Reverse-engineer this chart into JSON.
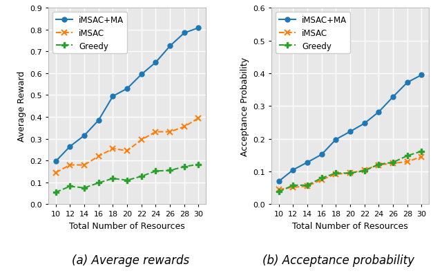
{
  "x": [
    10,
    12,
    14,
    16,
    18,
    20,
    22,
    24,
    26,
    28,
    30
  ],
  "reward_imsac_ma": [
    0.197,
    0.265,
    0.315,
    0.385,
    0.495,
    0.53,
    0.595,
    0.65,
    0.725,
    0.785,
    0.808
  ],
  "reward_imsac": [
    0.145,
    0.18,
    0.18,
    0.22,
    0.255,
    0.245,
    0.295,
    0.332,
    0.332,
    0.355,
    0.395
  ],
  "reward_greedy": [
    0.055,
    0.082,
    0.075,
    0.098,
    0.118,
    0.11,
    0.128,
    0.152,
    0.155,
    0.172,
    0.183
  ],
  "acc_imsac_ma": [
    0.07,
    0.105,
    0.128,
    0.152,
    0.198,
    0.222,
    0.247,
    0.282,
    0.328,
    0.372,
    0.395
  ],
  "acc_imsac": [
    0.045,
    0.052,
    0.055,
    0.075,
    0.092,
    0.095,
    0.105,
    0.12,
    0.125,
    0.13,
    0.145
  ],
  "acc_greedy": [
    0.038,
    0.058,
    0.058,
    0.08,
    0.095,
    0.095,
    0.102,
    0.122,
    0.128,
    0.148,
    0.162
  ],
  "color_blue": "#1f77b4",
  "color_orange": "#ff7f0e",
  "color_green": "#2ca02c",
  "xlabel": "Total Number of Resources",
  "ylabel_left": "Average Reward",
  "ylabel_right": "Acceptance Probability",
  "label_imsac_ma": "iMSAC+MA",
  "label_imsac": "iMSAC",
  "label_greedy": "Greedy",
  "caption_left": "(a) Average rewards",
  "caption_right": "(b) Acceptance probability",
  "ylim_left": [
    0.0,
    0.9
  ],
  "ylim_right": [
    0.0,
    0.6
  ],
  "yticks_left": [
    0.0,
    0.1,
    0.2,
    0.3,
    0.4,
    0.5,
    0.6,
    0.7,
    0.8,
    0.9
  ],
  "yticks_right": [
    0.0,
    0.1,
    0.2,
    0.3,
    0.4,
    0.5,
    0.6
  ],
  "axes_facecolor": "#e8e8e8",
  "grid_color": "#ffffff",
  "fig_facecolor": "#ffffff"
}
